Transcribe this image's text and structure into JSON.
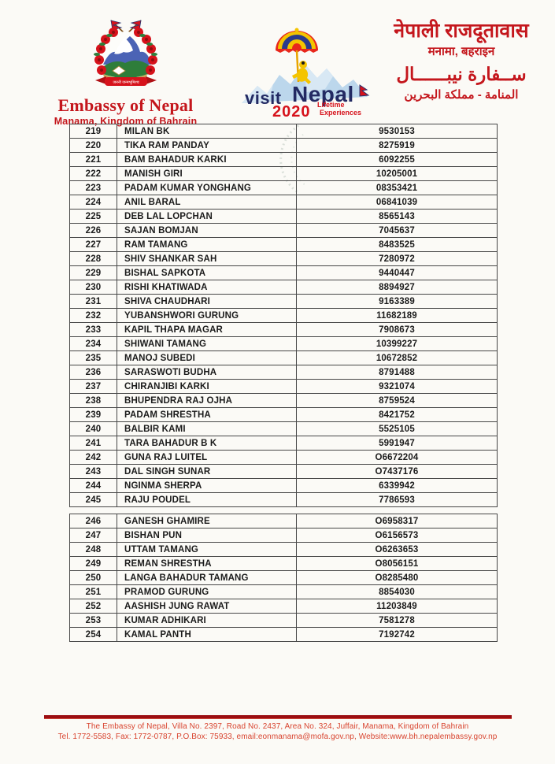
{
  "header": {
    "left": {
      "emblem_icon": "nepal-coat-of-arms",
      "title": "Embassy of Nepal",
      "subtitle": "Manama, Kingdom of Bahrain"
    },
    "center": {
      "logo_icon": "visit-nepal-2020-umbrella",
      "visit": "visit",
      "nepal": "Nepal",
      "year": "2020",
      "tagline_line1": "Lifetime",
      "tagline_line2": "Experiences"
    },
    "right": {
      "nepali_title": "नेपाली राजदूतावास",
      "nepali_subtitle": "मनामा, बहराइन",
      "arabic_title": "ســفارة نيبــــــال",
      "arabic_subtitle": "المنامة - مملكة البحرين"
    }
  },
  "table": {
    "sections": [
      {
        "rows": [
          {
            "no": "219",
            "name": "MILAN BK",
            "phone": "9530153"
          },
          {
            "no": "220",
            "name": "TIKA RAM PANDAY",
            "phone": "8275919"
          },
          {
            "no": "221",
            "name": "BAM BAHADUR KARKI",
            "phone": "6092255"
          },
          {
            "no": "222",
            "name": "MANISH GIRI",
            "phone": "10205001"
          },
          {
            "no": "223",
            "name": "PADAM KUMAR YONGHANG",
            "phone": "08353421"
          },
          {
            "no": "224",
            "name": "ANIL BARAL",
            "phone": "06841039"
          },
          {
            "no": "225",
            "name": "DEB LAL LOPCHAN",
            "phone": "8565143"
          },
          {
            "no": "226",
            "name": "SAJAN BOMJAN",
            "phone": "7045637"
          },
          {
            "no": "227",
            "name": "RAM TAMANG",
            "phone": "8483525"
          },
          {
            "no": "228",
            "name": "SHIV SHANKAR SAH",
            "phone": "7280972"
          },
          {
            "no": "229",
            "name": "BISHAL SAPKOTA",
            "phone": "9440447"
          },
          {
            "no": "230",
            "name": "RISHI KHATIWADA",
            "phone": "8894927"
          },
          {
            "no": "231",
            "name": "SHIVA CHAUDHARI",
            "phone": "9163389"
          },
          {
            "no": "232",
            "name": "YUBANSHWORI GURUNG",
            "phone": "11682189"
          },
          {
            "no": "233",
            "name": "KAPIL THAPA MAGAR",
            "phone": "7908673"
          },
          {
            "no": "234",
            "name": "SHIWANI TAMANG",
            "phone": "10399227"
          },
          {
            "no": "235",
            "name": "MANOJ SUBEDI",
            "phone": "10672852"
          },
          {
            "no": "236",
            "name": "SARASWOTI BUDHA",
            "phone": "8791488"
          },
          {
            "no": "237",
            "name": "CHIRANJIBI KARKI",
            "phone": "9321074"
          },
          {
            "no": "238",
            "name": "BHUPENDRA RAJ OJHA",
            "phone": "8759524"
          },
          {
            "no": "239",
            "name": "PADAM SHRESTHA",
            "phone": "8421752"
          },
          {
            "no": "240",
            "name": "BALBIR KAMI",
            "phone": "5525105"
          },
          {
            "no": "241",
            "name": "TARA BAHADUR B K",
            "phone": "5991947"
          },
          {
            "no": "242",
            "name": "GUNA RAJ LUITEL",
            "phone": "O6672204"
          },
          {
            "no": "243",
            "name": "DAL SINGH SUNAR",
            "phone": "O7437176"
          },
          {
            "no": "244",
            "name": "NGINMA SHERPA",
            "phone": "6339942"
          },
          {
            "no": "245",
            "name": "RAJU POUDEL",
            "phone": "7786593"
          }
        ]
      },
      {
        "rows": [
          {
            "no": "246",
            "name": "GANESH GHAMIRE",
            "phone": "O6958317"
          },
          {
            "no": "247",
            "name": "BISHAN PUN",
            "phone": "O6156573"
          },
          {
            "no": "248",
            "name": "UTTAM TAMANG",
            "phone": "O6263653"
          },
          {
            "no": "249",
            "name": "REMAN SHRESTHA",
            "phone": "O8056151"
          },
          {
            "no": "250",
            "name": "LANGA BAHADUR TAMANG",
            "phone": "O8285480"
          },
          {
            "no": "251",
            "name": "PRAMOD GURUNG",
            "phone": "8854030"
          },
          {
            "no": "252",
            "name": "AASHISH JUNG RAWAT",
            "phone": "11203849"
          },
          {
            "no": "253",
            "name": "KUMAR ADHIKARI",
            "phone": "7581278"
          },
          {
            "no": "254",
            "name": "KAMAL PANTH",
            "phone": "7192742"
          }
        ]
      }
    ]
  },
  "footer": {
    "line1": "The Embassy of Nepal, Villa No. 2397, Road No. 2437, Area No. 324, Juffair, Manama, Kingdom of Bahrain",
    "line2": "Tel. 1772-5583, Fax: 1772-0787, P.O.Box: 75933, email:eonmanama@mofa.gov.np, Website:www.bh.nepalembassy.gov.np"
  },
  "colors": {
    "brand_red": "#c4161c",
    "logo_navy": "#232a63",
    "logo_red": "#d6121b",
    "footer_rule_red": "#9b0e12",
    "footer_text_red": "#d8432e",
    "table_line": "#474747"
  }
}
